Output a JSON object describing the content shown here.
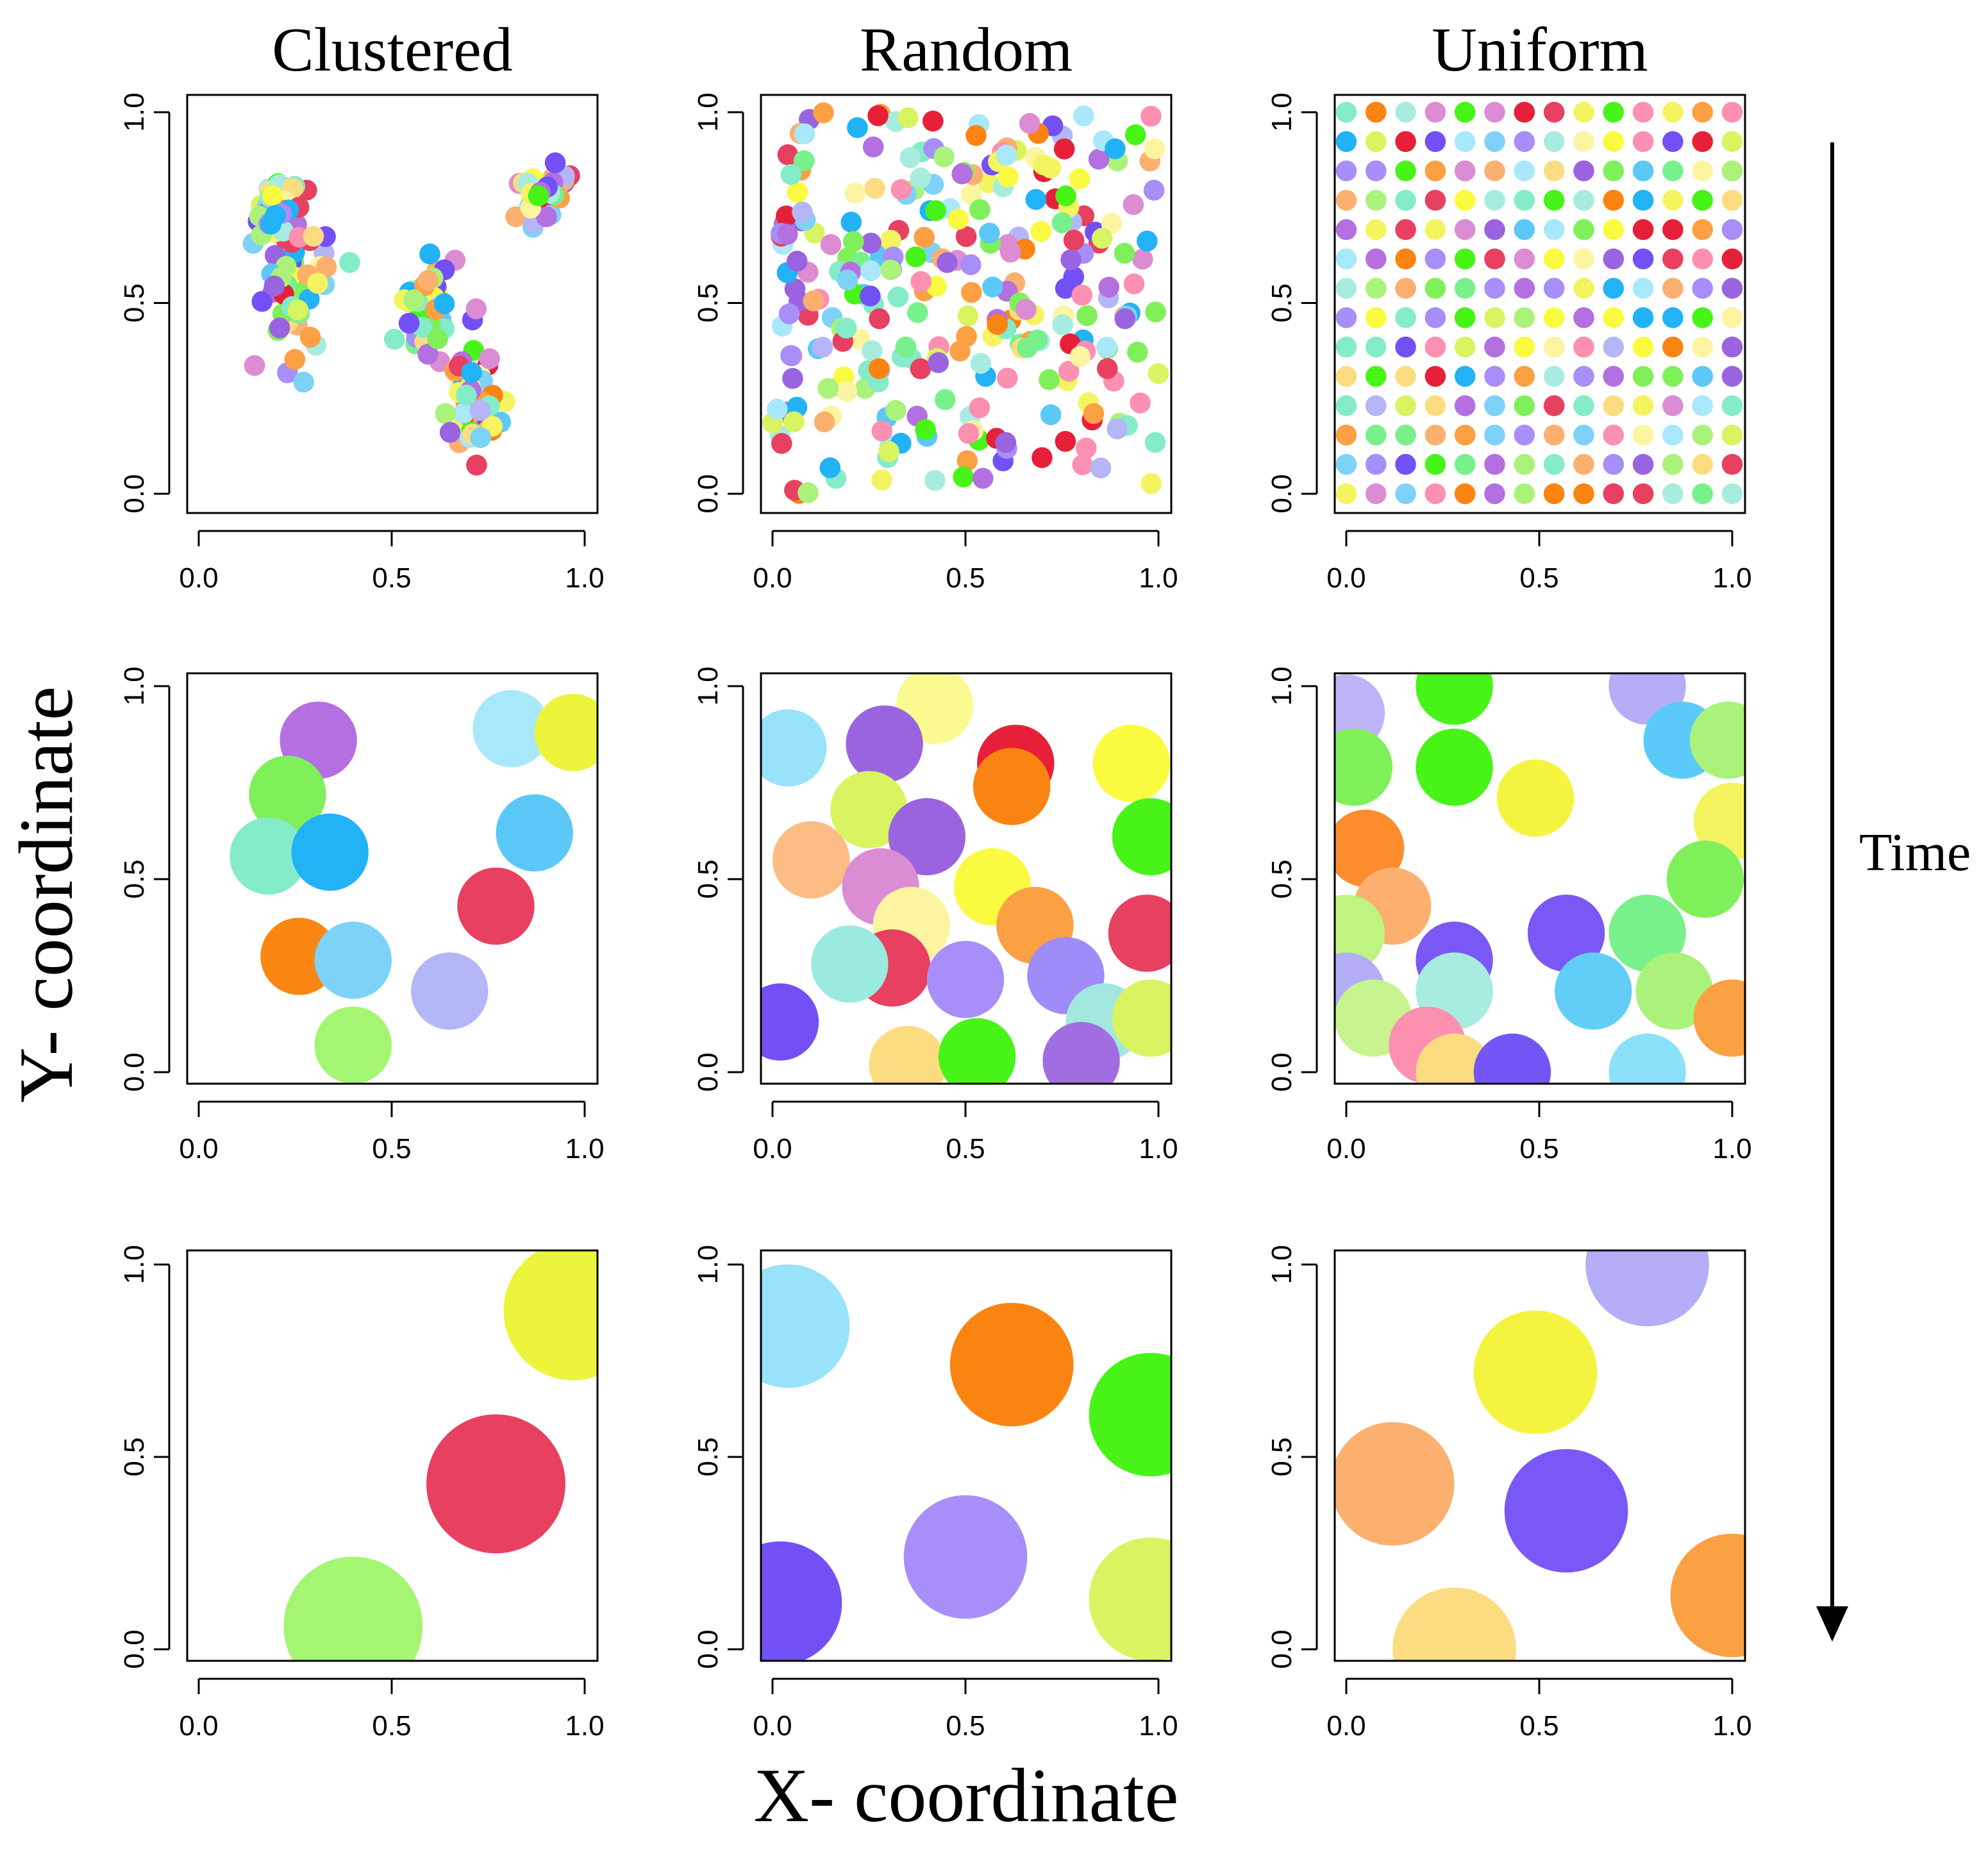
{
  "figure": {
    "column_titles": [
      "Clustered",
      "Random",
      "Uniform"
    ],
    "xlabel": "X- coordinate",
    "ylabel": "Y- coordinate",
    "time_label": "Time"
  },
  "chart_data": [
    {
      "type": "scatter",
      "id": "clustered-1",
      "title": "Clustered",
      "xlim": [
        0,
        1
      ],
      "ylim": [
        0,
        1
      ],
      "xticks": [
        "0.0",
        "0.5",
        "1.0"
      ],
      "yticks": [
        "0.0",
        "0.5",
        "1.0"
      ],
      "radius": 0.027,
      "generate": {
        "kind": "clusters",
        "n": 240,
        "seed": 3,
        "centers": [
          [
            0.25,
            0.55,
            0.09,
            0.16
          ],
          [
            0.6,
            0.48,
            0.06,
            0.12
          ],
          [
            0.72,
            0.25,
            0.07,
            0.14
          ],
          [
            0.9,
            0.8,
            0.07,
            0.08
          ],
          [
            0.2,
            0.75,
            0.06,
            0.06
          ]
        ]
      },
      "points": []
    },
    {
      "type": "scatter",
      "id": "random-1",
      "title": "Random",
      "xlim": [
        0,
        1
      ],
      "ylim": [
        0,
        1
      ],
      "xticks": [
        "0.0",
        "0.5",
        "1.0"
      ],
      "yticks": [
        "0.0",
        "0.5",
        "1.0"
      ],
      "radius": 0.027,
      "generate": {
        "kind": "random",
        "n": 280,
        "seed": 11
      },
      "points": []
    },
    {
      "type": "scatter",
      "id": "uniform-1",
      "title": "Uniform",
      "xlim": [
        0,
        1
      ],
      "ylim": [
        0,
        1
      ],
      "xticks": [
        "0.0",
        "0.5",
        "1.0"
      ],
      "yticks": [
        "0.0",
        "0.5",
        "1.0"
      ],
      "radius": 0.027,
      "generate": {
        "kind": "grid",
        "n": 14,
        "seed": 7
      },
      "points": []
    },
    {
      "type": "scatter",
      "id": "clustered-2",
      "xlim": [
        0,
        1
      ],
      "ylim": [
        0,
        1
      ],
      "xticks": [
        "0.0",
        "0.5",
        "1.0"
      ],
      "yticks": [
        "0.0",
        "0.5",
        "1.0"
      ],
      "radius": 0.1,
      "points": [
        {
          "x": 0.31,
          "y": 0.86,
          "color": "#b46fe0"
        },
        {
          "x": 0.81,
          "y": 0.89,
          "color": "#a8e8fa"
        },
        {
          "x": 0.97,
          "y": 0.88,
          "color": "#ecf43c"
        },
        {
          "x": 0.23,
          "y": 0.72,
          "color": "#7ff05a"
        },
        {
          "x": 0.18,
          "y": 0.56,
          "color": "#84ecc8"
        },
        {
          "x": 0.34,
          "y": 0.57,
          "color": "#22b2f6"
        },
        {
          "x": 0.87,
          "y": 0.62,
          "color": "#5cc8f8"
        },
        {
          "x": 0.77,
          "y": 0.43,
          "color": "#e84060"
        },
        {
          "x": 0.26,
          "y": 0.3,
          "color": "#fa8712"
        },
        {
          "x": 0.4,
          "y": 0.29,
          "color": "#7ed2f8"
        },
        {
          "x": 0.65,
          "y": 0.21,
          "color": "#b4b6f8"
        },
        {
          "x": 0.4,
          "y": 0.07,
          "color": "#a4f672"
        }
      ]
    },
    {
      "type": "scatter",
      "id": "random-2",
      "xlim": [
        0,
        1
      ],
      "ylim": [
        0,
        1
      ],
      "xticks": [
        "0.0",
        "0.5",
        "1.0"
      ],
      "yticks": [
        "0.0",
        "0.5",
        "1.0"
      ],
      "radius": 0.1,
      "points": [
        {
          "x": 0.04,
          "y": 0.84,
          "color": "#98e2fa"
        },
        {
          "x": 0.42,
          "y": 0.95,
          "color": "#fafa90"
        },
        {
          "x": 0.29,
          "y": 0.85,
          "color": "#9a64e0"
        },
        {
          "x": 0.63,
          "y": 0.8,
          "color": "#e62038"
        },
        {
          "x": 0.62,
          "y": 0.74,
          "color": "#fa8412"
        },
        {
          "x": 0.93,
          "y": 0.8,
          "color": "#fafa40"
        },
        {
          "x": 0.25,
          "y": 0.68,
          "color": "#d8f460"
        },
        {
          "x": 0.4,
          "y": 0.61,
          "color": "#9a64e0"
        },
        {
          "x": 0.98,
          "y": 0.61,
          "color": "#48f418"
        },
        {
          "x": 0.1,
          "y": 0.55,
          "color": "#fcbc84"
        },
        {
          "x": 0.28,
          "y": 0.48,
          "color": "#dc8cd2"
        },
        {
          "x": 0.57,
          "y": 0.48,
          "color": "#fafa40"
        },
        {
          "x": 0.68,
          "y": 0.38,
          "color": "#fca044"
        },
        {
          "x": 0.36,
          "y": 0.38,
          "color": "#fcf4a0"
        },
        {
          "x": 0.97,
          "y": 0.36,
          "color": "#e84060"
        },
        {
          "x": 0.31,
          "y": 0.27,
          "color": "#e84060"
        },
        {
          "x": 0.2,
          "y": 0.28,
          "color": "#9aeae0"
        },
        {
          "x": 0.5,
          "y": 0.24,
          "color": "#a88ef8"
        },
        {
          "x": 0.76,
          "y": 0.25,
          "color": "#a08cf8"
        },
        {
          "x": 0.02,
          "y": 0.13,
          "color": "#7350f6"
        },
        {
          "x": 0.86,
          "y": 0.13,
          "color": "#a2e8e0"
        },
        {
          "x": 0.98,
          "y": 0.14,
          "color": "#d8f460"
        },
        {
          "x": 0.35,
          "y": 0.02,
          "color": "#fcdc80"
        },
        {
          "x": 0.53,
          "y": 0.04,
          "color": "#48f418"
        },
        {
          "x": 0.8,
          "y": 0.03,
          "color": "#a06ee0"
        }
      ]
    },
    {
      "type": "scatter",
      "id": "uniform-2",
      "xlim": [
        0,
        1
      ],
      "ylim": [
        0,
        1
      ],
      "xticks": [
        "0.0",
        "0.5",
        "1.0"
      ],
      "yticks": [
        "0.0",
        "0.5",
        "1.0"
      ],
      "radius": 0.1,
      "points": [
        {
          "x": 0.0,
          "y": 0.93,
          "color": "#c0b4f8"
        },
        {
          "x": 0.28,
          "y": 1.0,
          "color": "#48f418"
        },
        {
          "x": 0.78,
          "y": 1.0,
          "color": "#b4aef8"
        },
        {
          "x": 0.02,
          "y": 0.79,
          "color": "#80f05a"
        },
        {
          "x": 0.28,
          "y": 0.79,
          "color": "#48f418"
        },
        {
          "x": 0.87,
          "y": 0.86,
          "color": "#5ccaf8"
        },
        {
          "x": 0.99,
          "y": 0.86,
          "color": "#aaf27a"
        },
        {
          "x": 0.49,
          "y": 0.71,
          "color": "#f4f440"
        },
        {
          "x": 1.0,
          "y": 0.65,
          "color": "#f4f460"
        },
        {
          "x": 0.05,
          "y": 0.58,
          "color": "#fc8c2c"
        },
        {
          "x": 0.93,
          "y": 0.5,
          "color": "#80f05a"
        },
        {
          "x": 0.12,
          "y": 0.43,
          "color": "#fcb070"
        },
        {
          "x": 0.0,
          "y": 0.36,
          "color": "#c0f480"
        },
        {
          "x": 0.57,
          "y": 0.36,
          "color": "#7a58f6"
        },
        {
          "x": 0.78,
          "y": 0.36,
          "color": "#78f08c"
        },
        {
          "x": 0.28,
          "y": 0.29,
          "color": "#7a58f6"
        },
        {
          "x": 0.0,
          "y": 0.21,
          "color": "#b4aef8"
        },
        {
          "x": 0.28,
          "y": 0.21,
          "color": "#a8ece0"
        },
        {
          "x": 0.64,
          "y": 0.21,
          "color": "#62cef8"
        },
        {
          "x": 0.85,
          "y": 0.21,
          "color": "#aaf27a"
        },
        {
          "x": 0.07,
          "y": 0.14,
          "color": "#c8f490"
        },
        {
          "x": 0.21,
          "y": 0.07,
          "color": "#fc90b0"
        },
        {
          "x": 0.28,
          "y": 0.0,
          "color": "#fcdc80"
        },
        {
          "x": 0.43,
          "y": 0.0,
          "color": "#7456f6"
        },
        {
          "x": 0.78,
          "y": 0.0,
          "color": "#8ce0fa"
        },
        {
          "x": 1.0,
          "y": 0.14,
          "color": "#fca044"
        }
      ]
    },
    {
      "type": "scatter",
      "id": "clustered-3",
      "xlim": [
        0,
        1
      ],
      "ylim": [
        0,
        1
      ],
      "xticks": [
        "0.0",
        "0.5",
        "1.0"
      ],
      "yticks": [
        "0.0",
        "0.5",
        "1.0"
      ],
      "radius": 0.18,
      "points": [
        {
          "x": 0.97,
          "y": 0.88,
          "color": "#ecf43c"
        },
        {
          "x": 0.77,
          "y": 0.43,
          "color": "#e84060"
        },
        {
          "x": 0.4,
          "y": 0.06,
          "color": "#a4f672"
        }
      ]
    },
    {
      "type": "scatter",
      "id": "random-3",
      "xlim": [
        0,
        1
      ],
      "ylim": [
        0,
        1
      ],
      "xticks": [
        "0.0",
        "0.5",
        "1.0"
      ],
      "yticks": [
        "0.0",
        "0.5",
        "1.0"
      ],
      "radius": 0.16,
      "points": [
        {
          "x": 0.04,
          "y": 0.84,
          "color": "#98e2fa"
        },
        {
          "x": 0.62,
          "y": 0.74,
          "color": "#fa8412"
        },
        {
          "x": 0.98,
          "y": 0.61,
          "color": "#48f418"
        },
        {
          "x": 0.5,
          "y": 0.24,
          "color": "#a88ef8"
        },
        {
          "x": 0.02,
          "y": 0.12,
          "color": "#7350f6"
        },
        {
          "x": 0.98,
          "y": 0.13,
          "color": "#d8f460"
        }
      ]
    },
    {
      "type": "scatter",
      "id": "uniform-3",
      "xlim": [
        0,
        1
      ],
      "ylim": [
        0,
        1
      ],
      "xticks": [
        "0.0",
        "0.5",
        "1.0"
      ],
      "yticks": [
        "0.0",
        "0.5",
        "1.0"
      ],
      "radius": 0.16,
      "points": [
        {
          "x": 0.78,
          "y": 1.0,
          "color": "#b4aef8"
        },
        {
          "x": 0.49,
          "y": 0.72,
          "color": "#f4f440"
        },
        {
          "x": 0.12,
          "y": 0.43,
          "color": "#fcb070"
        },
        {
          "x": 0.57,
          "y": 0.36,
          "color": "#7a58f6"
        },
        {
          "x": 1.0,
          "y": 0.14,
          "color": "#fca044"
        },
        {
          "x": 0.28,
          "y": 0.0,
          "color": "#fcdc80"
        }
      ]
    }
  ],
  "palette": [
    "#e62038",
    "#fa8412",
    "#fcb070",
    "#fca044",
    "#fcdc80",
    "#fafa40",
    "#f4f460",
    "#fcf4a0",
    "#d8f460",
    "#aaf27a",
    "#80f05a",
    "#48f418",
    "#78f08c",
    "#84ecc8",
    "#a8ece0",
    "#a8e8fa",
    "#7ed2f8",
    "#5cc8f8",
    "#22b2f6",
    "#b4b6f8",
    "#a88ef8",
    "#7350f6",
    "#9a64e0",
    "#b46fe0",
    "#dc8cd2",
    "#fc90b0",
    "#e84060"
  ]
}
